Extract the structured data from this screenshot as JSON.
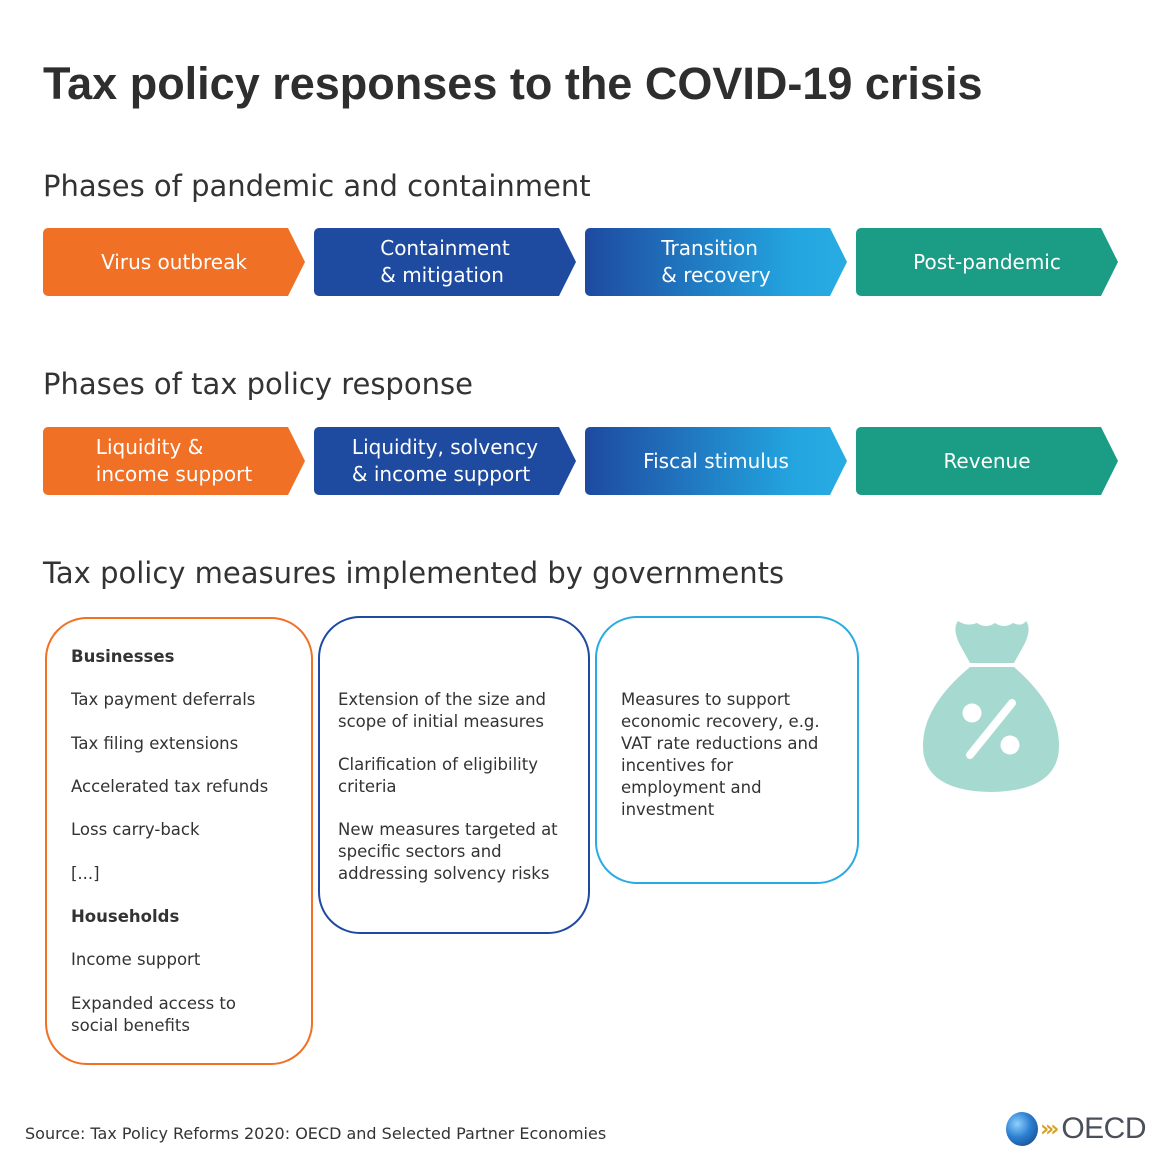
{
  "title": "Tax policy responses to the COVID-19 crisis",
  "pandemic_phases": {
    "heading": "Phases of pandemic and containment",
    "items": [
      "Virus outbreak",
      "Containment\n& mitigation",
      "Transition\n& recovery",
      "Post-pandemic"
    ]
  },
  "tax_phases": {
    "heading": "Phases of tax policy response",
    "items": [
      "Liquidity &\nincome support",
      "Liquidity, solvency\n& income support",
      "Fiscal stimulus",
      "Revenue"
    ]
  },
  "measures": {
    "heading": "Tax policy measures implemented by governments",
    "box1": {
      "businesses_heading": "Businesses",
      "businesses": [
        "Tax payment deferrals",
        "Tax filing extensions",
        "Accelerated tax refunds",
        "Loss carry-back",
        "[...]"
      ],
      "households_heading": "Households",
      "households": [
        "Income support",
        "Expanded access to social benefits"
      ]
    },
    "box2": [
      "Extension of the size and scope of initial measures",
      "Clarification of eligibility criteria",
      "New measures targeted at specific sectors and addressing solvency risks"
    ],
    "box3": [
      "Measures to support economic recovery, e.g. VAT rate reductions and incentives for employment and investment"
    ]
  },
  "icons": {
    "measures_bag": "money-bag-percent-icon",
    "logo_globe": "globe-icon"
  },
  "colors": {
    "orange": "#f07026",
    "navy": "#1e4aa0",
    "light_blue": "#29abe2",
    "teal": "#1b9c85",
    "bag": "#a6d9cf"
  },
  "source": "Source: Tax Policy Reforms 2020: OECD and Selected Partner Economies",
  "logo_text": "OECD"
}
